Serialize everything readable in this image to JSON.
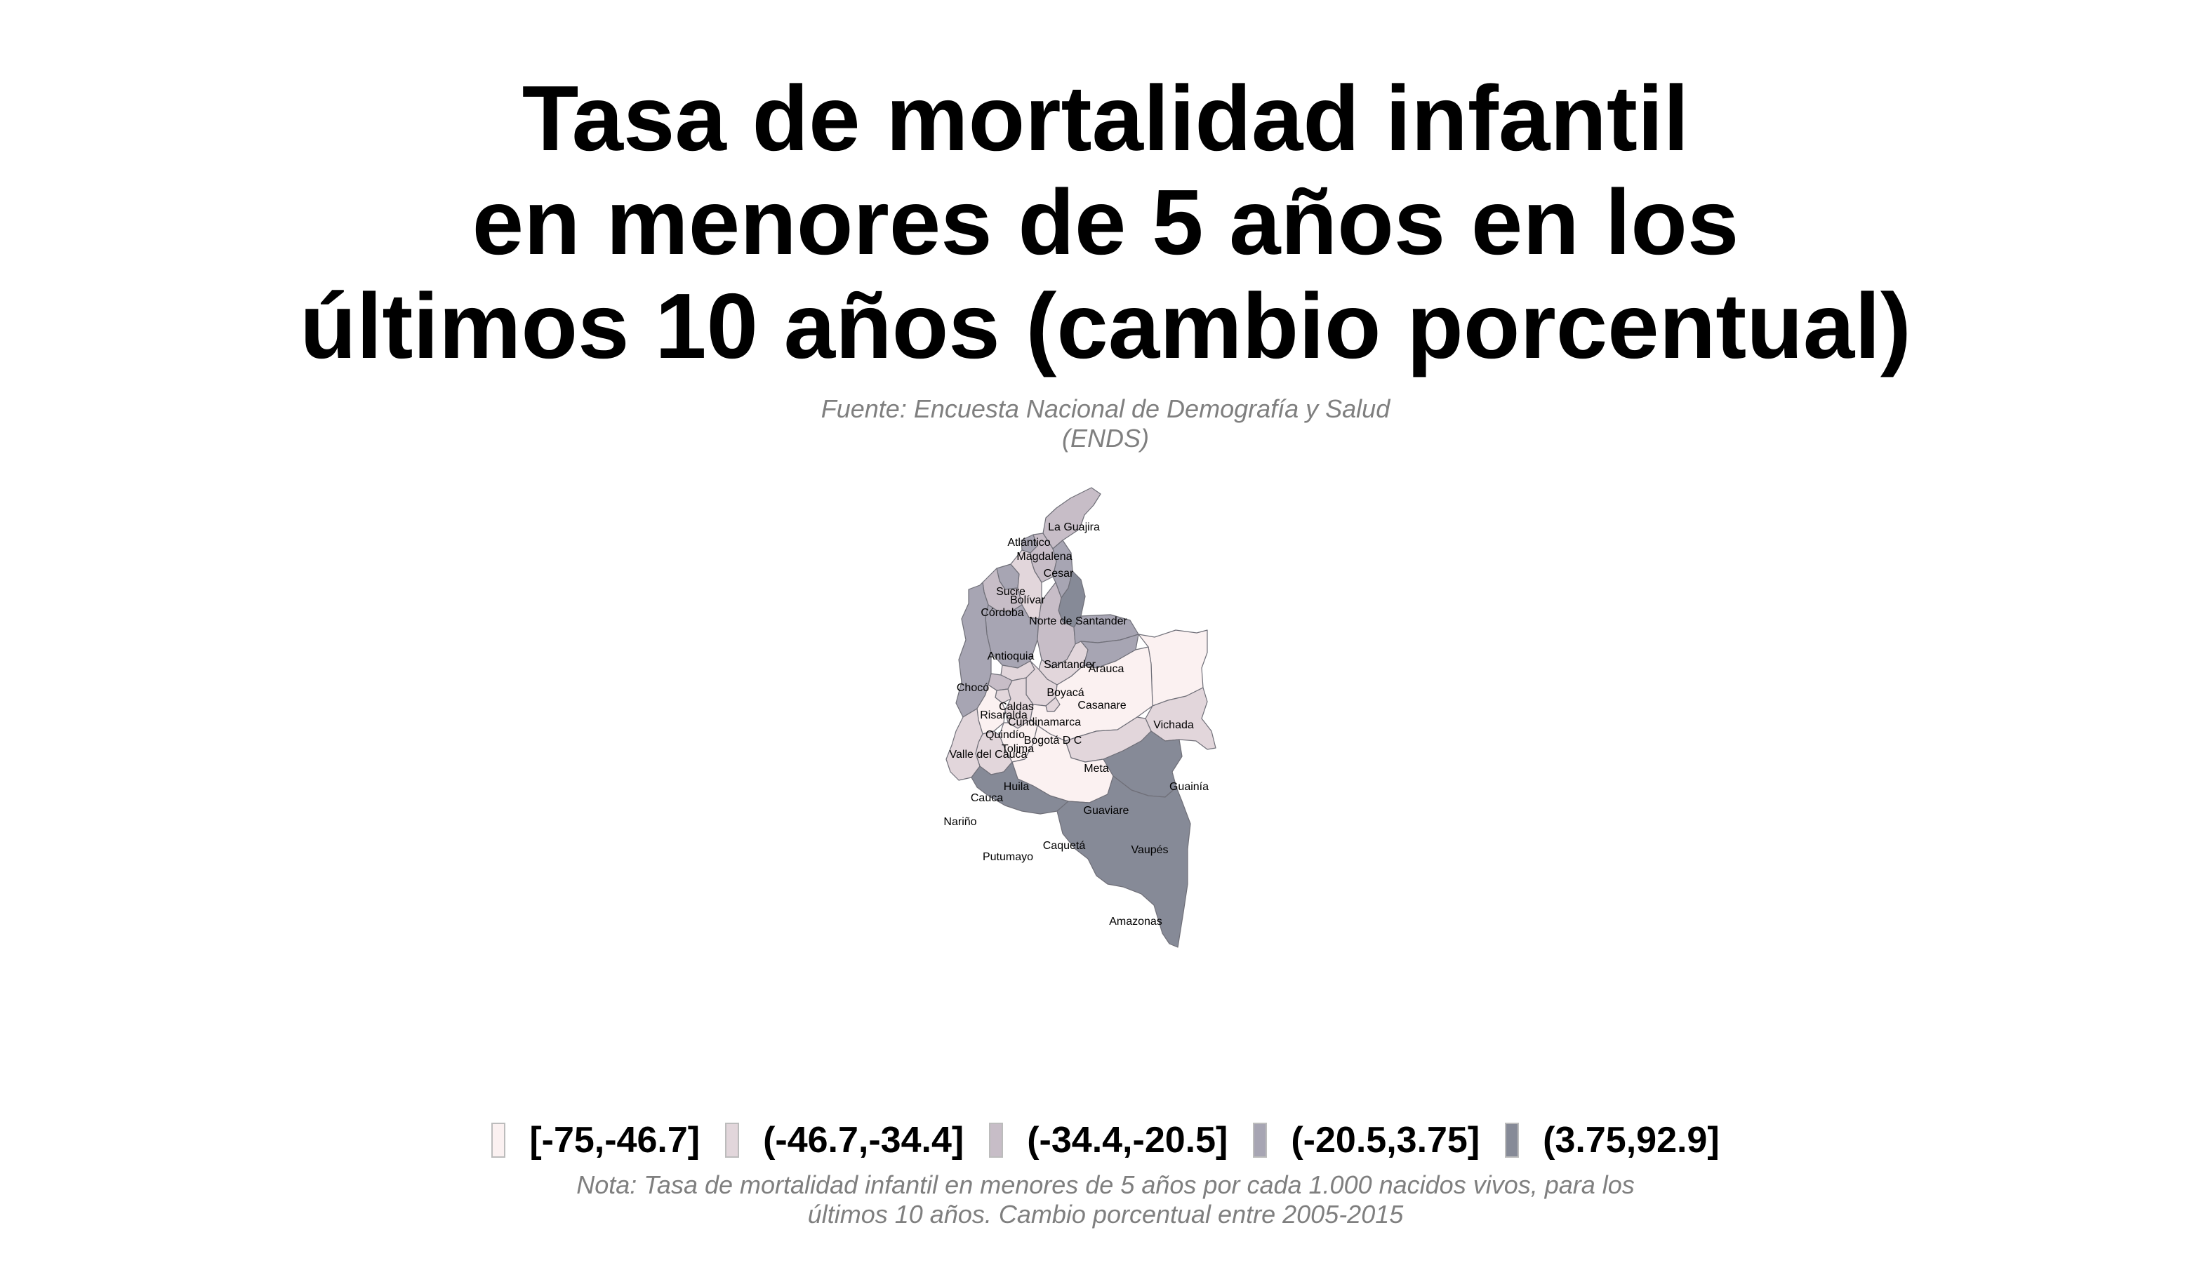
{
  "title_lines": [
    "Tasa de mortalidad infantil",
    "en menores de 5 años en los",
    "últimos 10 años (cambio porcentual)"
  ],
  "source_lines": [
    "Fuente: Encuesta Nacional de Demografía y Salud",
    "(ENDS)"
  ],
  "legend": [
    {
      "label": "[-75,-46.7]",
      "color": "#fbf1f1"
    },
    {
      "label": "(-46.7,-34.4]",
      "color": "#e2d6db"
    },
    {
      "label": "(-34.4,-20.5]",
      "color": "#c7bdc7"
    },
    {
      "label": "(-20.5,3.75]",
      "color": "#a7a5b3"
    },
    {
      "label": "(3.75,92.9]",
      "color": "#868a97"
    }
  ],
  "regions": [
    {
      "name": "La Guajira",
      "class": 2
    },
    {
      "name": "Atlántico",
      "class": 3
    },
    {
      "name": "Magdalena",
      "class": 2
    },
    {
      "name": "Cesar",
      "class": 3
    },
    {
      "name": "Sucre",
      "class": 3
    },
    {
      "name": "Bolívar",
      "class": 1
    },
    {
      "name": "Córdoba",
      "class": 2
    },
    {
      "name": "Norte de Santander",
      "class": 4
    },
    {
      "name": "Antioquia",
      "class": 3
    },
    {
      "name": "Santander",
      "class": 2
    },
    {
      "name": "Arauca",
      "class": 3
    },
    {
      "name": "Chocó",
      "class": 3
    },
    {
      "name": "Boyacá",
      "class": 1
    },
    {
      "name": "Caldas",
      "class": 1
    },
    {
      "name": "Casanare",
      "class": 3
    },
    {
      "name": "Risaralda",
      "class": 2
    },
    {
      "name": "Cundinamarca",
      "class": 1
    },
    {
      "name": "Vichada",
      "class": 0
    },
    {
      "name": "Quindío",
      "class": 1
    },
    {
      "name": "Bogotá D C",
      "class": 1
    },
    {
      "name": "Tolima",
      "class": 1
    },
    {
      "name": "Valle del Cauca",
      "class": 0
    },
    {
      "name": "Meta",
      "class": 0
    },
    {
      "name": "Huila",
      "class": 0
    },
    {
      "name": "Guainía",
      "class": 1
    },
    {
      "name": "Cauca",
      "class": 1
    },
    {
      "name": "Guaviare",
      "class": 1
    },
    {
      "name": "Nariño",
      "class": 1
    },
    {
      "name": "Caquetá",
      "class": 0
    },
    {
      "name": "Vaupés",
      "class": 4
    },
    {
      "name": "Putumayo",
      "class": 4
    },
    {
      "name": "Amazonas",
      "class": 4
    }
  ],
  "note_lines": [
    "Nota: Tasa de mortalidad infantil en menores de 5 años por cada 1.000 nacidos vivos, para los",
    "últimos 10 años. Cambio porcentual entre 2005-2015"
  ]
}
